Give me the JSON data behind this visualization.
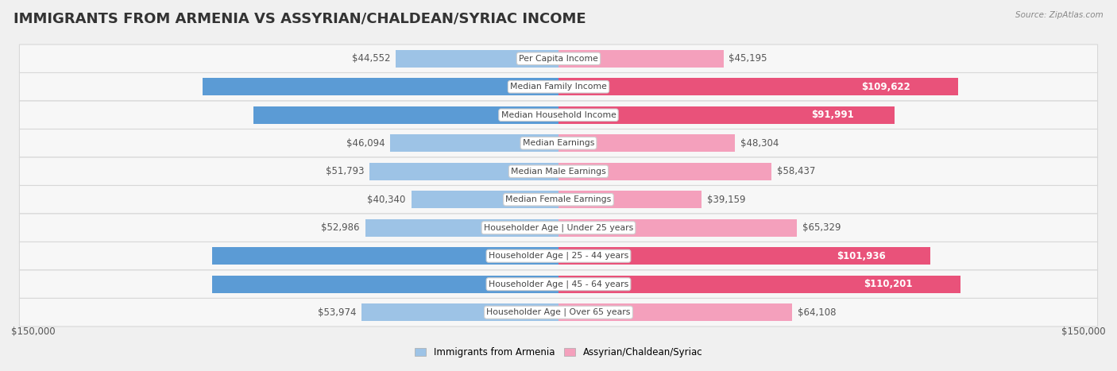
{
  "title": "IMMIGRANTS FROM ARMENIA VS ASSYRIAN/CHALDEAN/SYRIAC INCOME",
  "source": "Source: ZipAtlas.com",
  "categories": [
    "Per Capita Income",
    "Median Family Income",
    "Median Household Income",
    "Median Earnings",
    "Median Male Earnings",
    "Median Female Earnings",
    "Householder Age | Under 25 years",
    "Householder Age | 25 - 44 years",
    "Householder Age | 45 - 64 years",
    "Householder Age | Over 65 years"
  ],
  "armenia_values": [
    44552,
    97605,
    83555,
    46094,
    51793,
    40340,
    52986,
    94867,
    94863,
    53974
  ],
  "assyrian_values": [
    45195,
    109622,
    91991,
    48304,
    58437,
    39159,
    65329,
    101936,
    110201,
    64108
  ],
  "armenia_color_high": "#5B9BD5",
  "armenia_color_low": "#9DC3E6",
  "assyrian_color_high": "#E9527A",
  "assyrian_color_low": "#F4A0BC",
  "armenia_label": "Immigrants from Armenia",
  "assyrian_label": "Assyrian/Chaldean/Syriac",
  "max_value": 150000,
  "background_color": "#f0f0f0",
  "row_bg_color": "#f7f7f7",
  "row_border_color": "#d8d8d8",
  "label_box_color": "#ffffff",
  "title_fontsize": 13,
  "value_fontsize": 8.5,
  "category_fontsize": 7.8,
  "axis_label": "$150,000",
  "high_threshold": 75000
}
